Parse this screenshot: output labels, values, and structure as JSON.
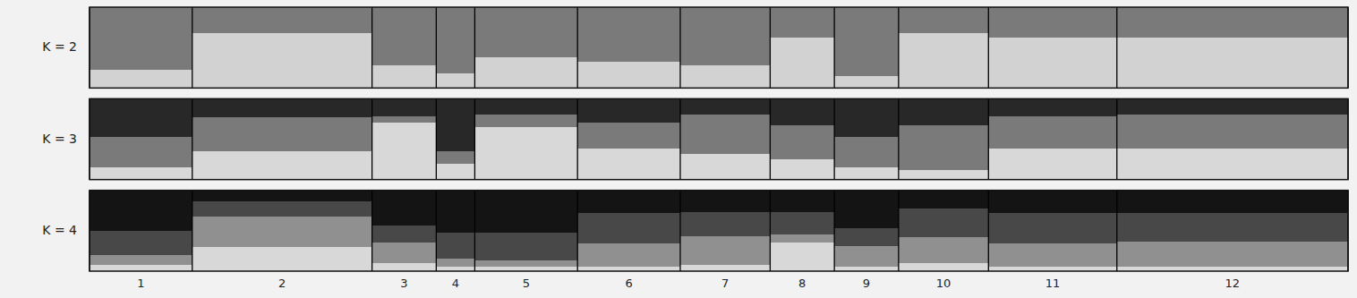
{
  "chart_data": [
    {
      "type": "bar",
      "stacked": true,
      "ylabel": "K = 2",
      "tick_labels": false,
      "categories": [
        "1",
        "2",
        "3",
        "4",
        "5",
        "6",
        "7",
        "8",
        "9",
        "10",
        "11",
        "12"
      ],
      "widths": [
        8,
        14,
        5,
        3,
        8,
        8,
        7,
        5,
        5,
        7,
        10,
        18
      ],
      "ylim": [
        0,
        1
      ],
      "series": [
        {
          "color": "#d2d2d2",
          "values": [
            0.22,
            0.68,
            0.28,
            0.18,
            0.38,
            0.32,
            0.28,
            0.62,
            0.15,
            0.68,
            0.62,
            0.62
          ]
        },
        {
          "color": "#7a7a7a",
          "values": [
            0.78,
            0.32,
            0.72,
            0.82,
            0.62,
            0.68,
            0.72,
            0.38,
            0.85,
            0.32,
            0.38,
            0.38
          ]
        }
      ]
    },
    {
      "type": "bar",
      "stacked": true,
      "ylabel": "K = 3",
      "tick_labels": false,
      "categories": [
        "1",
        "2",
        "3",
        "4",
        "5",
        "6",
        "7",
        "8",
        "9",
        "10",
        "11",
        "12"
      ],
      "widths": [
        8,
        14,
        5,
        3,
        8,
        8,
        7,
        5,
        5,
        7,
        10,
        18
      ],
      "ylim": [
        0,
        1
      ],
      "series": [
        {
          "color": "#d8d8d8",
          "values": [
            0.15,
            0.35,
            0.7,
            0.2,
            0.65,
            0.38,
            0.32,
            0.25,
            0.15,
            0.12,
            0.38,
            0.38
          ]
        },
        {
          "color": "#7a7a7a",
          "values": [
            0.38,
            0.42,
            0.08,
            0.15,
            0.15,
            0.32,
            0.48,
            0.42,
            0.38,
            0.55,
            0.4,
            0.42
          ]
        },
        {
          "color": "#282828",
          "values": [
            0.47,
            0.23,
            0.22,
            0.65,
            0.2,
            0.3,
            0.2,
            0.33,
            0.47,
            0.33,
            0.22,
            0.2
          ]
        }
      ]
    },
    {
      "type": "bar",
      "stacked": true,
      "ylabel": "K = 4",
      "tick_labels": "x",
      "categories": [
        "1",
        "2",
        "3",
        "4",
        "5",
        "6",
        "7",
        "8",
        "9",
        "10",
        "11",
        "12"
      ],
      "widths": [
        8,
        14,
        5,
        3,
        8,
        8,
        7,
        5,
        5,
        7,
        10,
        18
      ],
      "ylim": [
        0,
        1
      ],
      "series": [
        {
          "color": "#d8d8d8",
          "values": [
            0.08,
            0.3,
            0.1,
            0.06,
            0.05,
            0.06,
            0.08,
            0.35,
            0.06,
            0.1,
            0.06,
            0.06
          ]
        },
        {
          "color": "#909090",
          "values": [
            0.12,
            0.38,
            0.25,
            0.1,
            0.08,
            0.28,
            0.35,
            0.1,
            0.25,
            0.32,
            0.28,
            0.3
          ]
        },
        {
          "color": "#484848",
          "values": [
            0.3,
            0.18,
            0.22,
            0.32,
            0.35,
            0.38,
            0.3,
            0.28,
            0.22,
            0.35,
            0.38,
            0.36
          ]
        },
        {
          "color": "#141414",
          "values": [
            0.5,
            0.14,
            0.43,
            0.52,
            0.52,
            0.28,
            0.27,
            0.27,
            0.47,
            0.23,
            0.28,
            0.28
          ]
        }
      ]
    }
  ]
}
